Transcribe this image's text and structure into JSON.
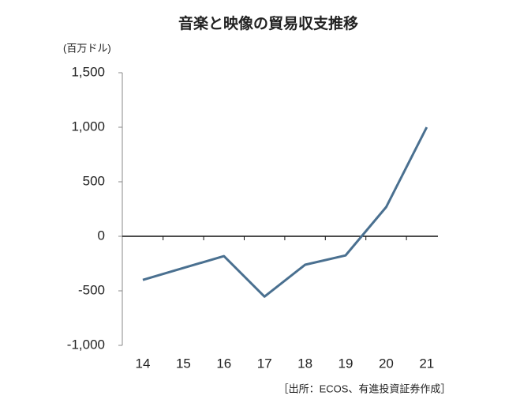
{
  "chart_data": {
    "type": "line",
    "title": "音楽と映像の貿易収支推移",
    "y_unit": "(百万ドル)",
    "source": "［出所：ECOS、有進投資証券作成］",
    "categories": [
      "14",
      "15",
      "16",
      "17",
      "18",
      "19",
      "20",
      "21"
    ],
    "values": [
      -400,
      -290,
      -182,
      -553,
      -261,
      -175,
      268,
      1000
    ],
    "color": "#4a7090",
    "ylim": [
      -1000,
      1500
    ],
    "yticks": [
      {
        "value": -1000,
        "label": "-1,000"
      },
      -500,
      0,
      500,
      {
        "value": 1000,
        "label": "1,000"
      },
      {
        "value": 1500,
        "label": "1,500"
      }
    ]
  }
}
